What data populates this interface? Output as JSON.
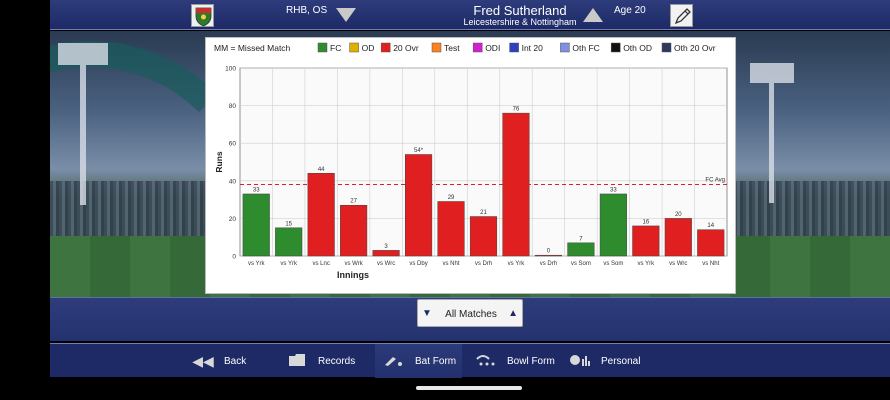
{
  "header": {
    "player_name": "Fred Sutherland",
    "county": "Leicestershire & Nottingham",
    "hand": "RHB, OS",
    "age": "Age 20"
  },
  "chart_data": {
    "type": "bar",
    "legend": [
      {
        "name": "MM = Missed Match",
        "color": ""
      },
      {
        "name": "FC",
        "color": "#2e8b2e"
      },
      {
        "name": "OD",
        "color": "#e0b000"
      },
      {
        "name": "20 Ovr",
        "color": "#e02020"
      },
      {
        "name": "Test",
        "color": "#ff8020"
      },
      {
        "name": "ODI",
        "color": "#d020d0"
      },
      {
        "name": "Int 20",
        "color": "#3040c0"
      },
      {
        "name": "Oth FC",
        "color": "#8090e0"
      },
      {
        "name": "Oth OD",
        "color": "#111111"
      },
      {
        "name": "Oth 20 Ovr",
        "color": "#303860"
      }
    ],
    "categories": [
      "vs Yrk",
      "vs Yrk",
      "vs Lnc",
      "vs Wrk",
      "vs Wrc",
      "vs Dby",
      "vs Nht",
      "vs Drh",
      "vs Yrk",
      "vs Drh",
      "vs Som",
      "vs Som",
      "vs Yrk",
      "vs Wrc",
      "vs Nht"
    ],
    "values": [
      33,
      15,
      44,
      27,
      3,
      54,
      29,
      21,
      76,
      0,
      7,
      33,
      16,
      20,
      14
    ],
    "value_labels": [
      "33",
      "15",
      "44",
      "27",
      "3",
      "54*",
      "29",
      "21",
      "76",
      "0",
      "7",
      "33",
      "16",
      "20",
      "14"
    ],
    "match_types": [
      "FC",
      "FC",
      "20 Ovr",
      "20 Ovr",
      "20 Ovr",
      "20 Ovr",
      "20 Ovr",
      "20 Ovr",
      "20 Ovr",
      "20 Ovr",
      "FC",
      "FC",
      "20 Ovr",
      "20 Ovr",
      "20 Ovr"
    ],
    "xlabel": "Innings",
    "ylabel": "Runs",
    "ylim": [
      0,
      100
    ],
    "yticks": [
      0,
      20,
      40,
      60,
      80,
      100
    ],
    "reference_line": {
      "label": "FC Avg",
      "value": 38,
      "color": "#e02020"
    },
    "grid": true
  },
  "filter": {
    "label": "All Matches",
    "prev_icon": "triangle-down-icon",
    "next_icon": "triangle-up-icon"
  },
  "nav": {
    "back": {
      "label": "Back",
      "icon": "rewind-icon"
    },
    "records": {
      "label": "Records",
      "icon": "folder-icon"
    },
    "bat_form": {
      "label": "Bat Form",
      "icon": "cricket-bat-icon"
    },
    "bowl_form": {
      "label": "Bowl Form",
      "icon": "bowling-icon"
    },
    "personal": {
      "label": "Personal",
      "icon": "personal-stats-icon"
    }
  }
}
